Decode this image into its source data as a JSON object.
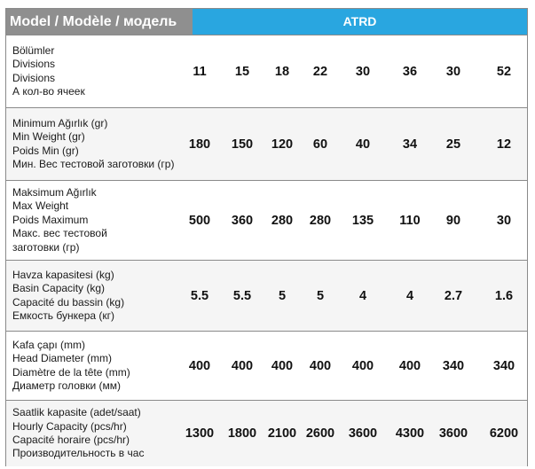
{
  "header": {
    "model_label": "Model / Modèle / модель",
    "series": "ATRD"
  },
  "rows": [
    {
      "label": [
        "Bölümler",
        "Divisions",
        "Divisions",
        "А кол-во ячеек"
      ],
      "values": [
        "11",
        "15",
        "18",
        "22",
        "30",
        "36",
        "30",
        "52"
      ]
    },
    {
      "label": [
        "Minimum Ağırlık (gr)",
        "Min Weight (gr)",
        "Poids Min (gr)",
        "Мин. Вес тестовой заготовки (гр)"
      ],
      "values": [
        "180",
        "150",
        "120",
        "60",
        "40",
        "34",
        "25",
        "12"
      ]
    },
    {
      "label": [
        "Maksimum Ağırlık",
        "Max Weight",
        "Poids Maximum",
        "Макс. вес тестовой",
        "заготовки (гр)"
      ],
      "values": [
        "500",
        "360",
        "280",
        "280",
        "135",
        "110",
        "90",
        "30"
      ]
    },
    {
      "label": [
        "Havza kapasitesi (kg)",
        "Basin Capacity (kg)",
        "Capacité du bassin (kg)",
        "Емкость бункера (кг)"
      ],
      "values": [
        "5.5",
        "5.5",
        "5",
        "5",
        "4",
        "4",
        "2.7",
        "1.6"
      ]
    },
    {
      "label": [
        "Kafa çapı (mm)",
        "Head Diameter (mm)",
        "Diamètre de la tête (mm)",
        "Диаметр головки (мм)"
      ],
      "values": [
        "400",
        "400",
        "400",
        "400",
        "400",
        "400",
        "340",
        "340"
      ]
    },
    {
      "label": [
        "Saatlik kapasite (adet/saat)",
        "Hourly Capacity (pcs/hr)",
        "Capacité horaire (pcs/hr)",
        "Производительность в час"
      ],
      "values": [
        "1300",
        "1800",
        "2100",
        "2600",
        "3600",
        "4300",
        "3600",
        "6200"
      ]
    }
  ]
}
